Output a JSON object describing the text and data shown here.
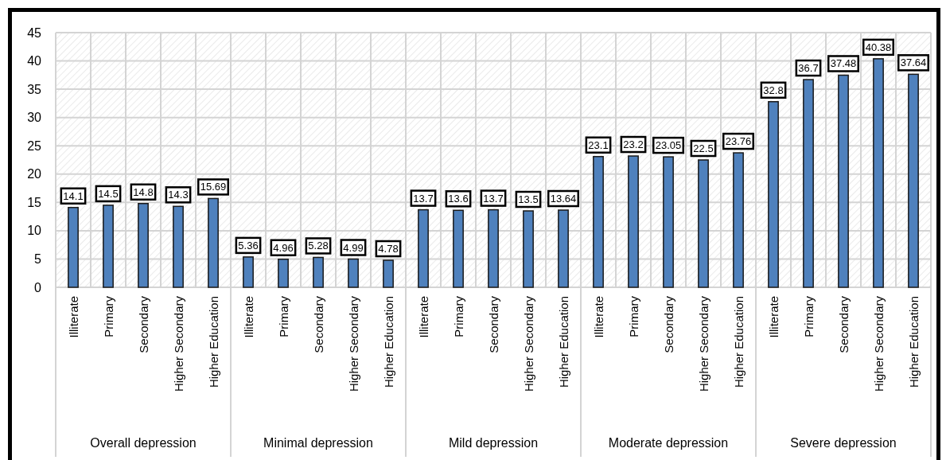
{
  "chart_data": {
    "type": "bar",
    "categories": [
      "Illiterate",
      "Primary",
      "Secondary",
      "Higher Secondary",
      "Higher Education",
      "Illiterate",
      "Primary",
      "Secondary",
      "Higher Secondary",
      "Higher Education",
      "Illiterate",
      "Primary",
      "Secondary",
      "Higher Secondary",
      "Higher Education",
      "Illiterate",
      "Primary",
      "Secondary",
      "Higher Secondary",
      "Higher Education",
      "Illiterate",
      "Primary",
      "Secondary",
      "Higher Secondary",
      "Higher Education"
    ],
    "values": [
      14.1,
      14.5,
      14.8,
      14.3,
      15.69,
      5.36,
      4.96,
      5.28,
      4.99,
      4.78,
      13.7,
      13.6,
      13.7,
      13.5,
      13.64,
      23.1,
      23.2,
      23.05,
      22.5,
      23.76,
      32.8,
      36.7,
      37.48,
      40.38,
      37.64
    ],
    "color": "#4f81bd",
    "ylim": [
      0,
      45
    ],
    "yticks": [
      0,
      5,
      10,
      15,
      20,
      25,
      30,
      35,
      40,
      45
    ],
    "grid": true,
    "data_labels": true,
    "annotations": [
      "Overall depression",
      "Minimal depression",
      "Mild depression",
      "Moderate depression",
      "Severe depression"
    ]
  }
}
